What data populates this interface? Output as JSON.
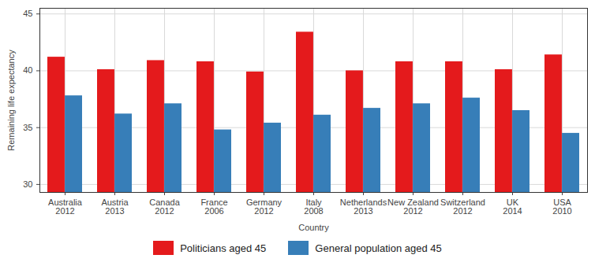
{
  "chart_data": {
    "type": "bar",
    "xlabel": "Country",
    "ylabel": "Remaining life expectancy",
    "categories": [
      "Australia\n2012",
      "Austria\n2013",
      "Canada\n2012",
      "France\n2006",
      "Germany\n2012",
      "Italy\n2008",
      "Netherlands\n2013",
      "New Zealand\n2012",
      "Switzerland\n2012",
      "UK\n2014",
      "USA\n2010"
    ],
    "series": [
      {
        "name": "Politicians aged 45",
        "color": "#e41a1c",
        "values": [
          41.2,
          40.1,
          40.9,
          40.8,
          39.9,
          43.4,
          40.0,
          40.8,
          40.8,
          40.1,
          41.4
        ]
      },
      {
        "name": "General population aged 45",
        "color": "#377eb8",
        "values": [
          37.8,
          36.2,
          37.1,
          34.8,
          35.4,
          36.1,
          36.7,
          37.1,
          37.6,
          36.5,
          34.5
        ]
      }
    ],
    "ylim": [
      29.3,
      45.5
    ],
    "yticks": [
      30,
      35,
      40,
      45
    ],
    "grid": true,
    "legend": "bottom"
  }
}
